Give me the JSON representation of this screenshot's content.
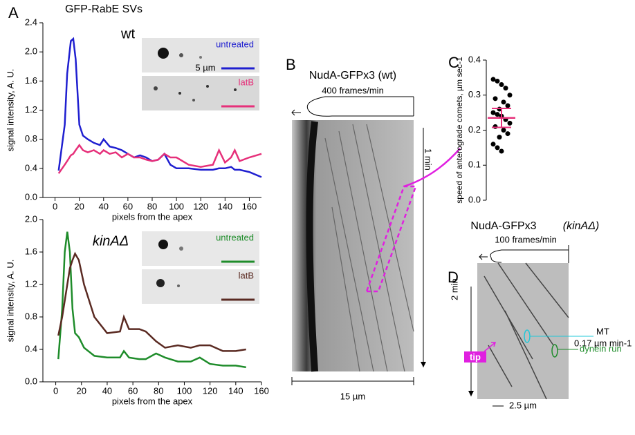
{
  "panels": [
    "A",
    "B",
    "C",
    "D"
  ],
  "chart_data": [
    {
      "type": "line",
      "title": "GFP-RabE SVs",
      "label": "wt",
      "x_label": "pixels from the apex",
      "y_label": "signal intensity, A. U.",
      "scale_label": "5 µm",
      "xlim": [
        -10,
        170
      ],
      "ylim": [
        0,
        2.4
      ],
      "xticks": [
        0,
        20,
        40,
        60,
        80,
        100,
        120,
        140,
        160
      ],
      "yticks": [
        {
          "value": 0,
          "label": "0.0"
        },
        0.4,
        0.8,
        1.2,
        1.6,
        {
          "value": 2,
          "label": "2.0"
        },
        2.4
      ],
      "x": [
        3,
        8,
        10,
        13,
        15,
        17,
        20,
        23,
        27,
        32,
        37,
        40,
        45,
        50,
        55,
        60,
        65,
        70,
        75,
        80,
        85,
        90,
        95,
        100,
        110,
        120,
        130,
        135,
        140,
        145,
        148,
        152,
        160,
        170
      ],
      "series": [
        {
          "name": "untreated",
          "color": "#1f1fd0",
          "values": [
            0.37,
            1.0,
            1.7,
            2.15,
            2.18,
            1.9,
            1.0,
            0.85,
            0.8,
            0.75,
            0.72,
            0.8,
            0.7,
            0.68,
            0.65,
            0.6,
            0.55,
            0.58,
            0.55,
            0.5,
            0.52,
            0.6,
            0.45,
            0.4,
            0.4,
            0.38,
            0.38,
            0.4,
            0.4,
            0.42,
            0.38,
            0.38,
            0.35,
            0.28
          ]
        },
        {
          "name": "latB",
          "color": "#e6307a",
          "values": [
            0.33,
            0.45,
            0.5,
            0.58,
            0.6,
            0.65,
            0.72,
            0.65,
            0.62,
            0.65,
            0.6,
            0.65,
            0.6,
            0.62,
            0.55,
            0.6,
            0.55,
            0.55,
            0.52,
            0.5,
            0.52,
            0.6,
            0.55,
            0.55,
            0.45,
            0.42,
            0.45,
            0.65,
            0.48,
            0.55,
            0.65,
            0.5,
            0.55,
            0.6
          ]
        }
      ]
    },
    {
      "type": "line",
      "label": "kinAΔ",
      "x_label": "pixels from the apex",
      "y_label": "signal intensity, A. U.",
      "xlim": [
        -10,
        160
      ],
      "ylim": [
        0,
        2
      ],
      "xticks": [
        0,
        20,
        40,
        60,
        80,
        100,
        120,
        140,
        160
      ],
      "yticks": [
        {
          "value": 0,
          "label": "0.0"
        },
        0.4,
        0.8,
        1.2,
        1.6,
        {
          "value": 2,
          "label": "2.0"
        }
      ],
      "x": [
        2,
        5,
        7,
        9,
        11,
        13,
        15,
        18,
        22,
        30,
        40,
        50,
        53,
        57,
        65,
        70,
        78,
        85,
        95,
        105,
        112,
        120,
        130,
        140,
        148
      ],
      "series": [
        {
          "name": "untreated",
          "color": "#1e8c2a",
          "values": [
            0.28,
            0.9,
            1.6,
            1.85,
            1.6,
            0.9,
            0.6,
            0.55,
            0.42,
            0.32,
            0.3,
            0.3,
            0.38,
            0.3,
            0.28,
            0.28,
            0.35,
            0.3,
            0.25,
            0.25,
            0.3,
            0.22,
            0.2,
            0.2,
            0.18
          ]
        },
        {
          "name": "latB",
          "color": "#5a2a22",
          "values": [
            0.57,
            0.8,
            1.0,
            1.2,
            1.4,
            1.5,
            1.58,
            1.5,
            1.2,
            0.8,
            0.6,
            0.62,
            0.8,
            0.65,
            0.65,
            0.62,
            0.5,
            0.42,
            0.45,
            0.42,
            0.45,
            0.45,
            0.38,
            0.38,
            0.4
          ]
        }
      ]
    },
    {
      "type": "scatter",
      "y_label": "speed of anterograde comets, µm sec-1",
      "ylim": [
        0,
        0.4
      ],
      "yticks": [
        {
          "value": 0,
          "label": "0.0"
        },
        0.1,
        0.2,
        0.3,
        0.4
      ],
      "values": [
        0.345,
        0.34,
        0.33,
        0.32,
        0.3,
        0.29,
        0.28,
        0.27,
        0.26,
        0.25,
        0.245,
        0.24,
        0.23,
        0.22,
        0.21,
        0.2,
        0.19,
        0.18,
        0.16,
        0.15,
        0.14
      ],
      "color": "#000000",
      "mean": 0.235,
      "error": 0.027,
      "mean_color": "#e6307a"
    }
  ],
  "kymograph_B": {
    "title": "NudA-GFPx3 (wt)",
    "rate": "400 frames/min",
    "time": "1 min",
    "scale": "15 µm"
  },
  "kymograph_D": {
    "title": "NudA-GFPx3",
    "strain": "(kinAΔ)",
    "rate": "100 frames/min",
    "time": "2 min",
    "mt": "MT",
    "mt_speed": "0.17 µm min-1",
    "dynein": "dynein run",
    "tip": "tip",
    "scale": "2.5 µm"
  }
}
